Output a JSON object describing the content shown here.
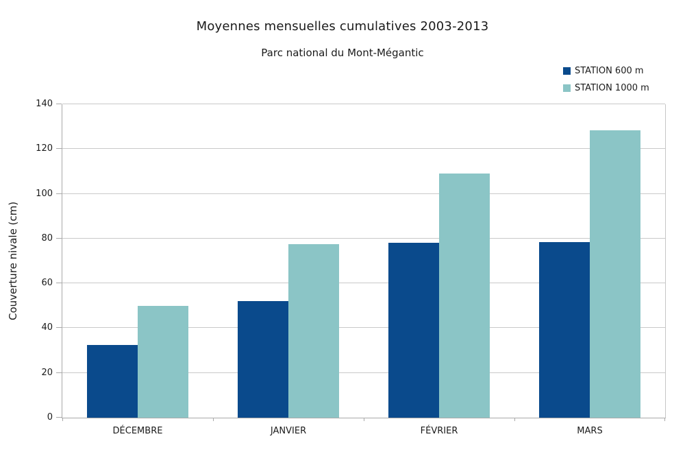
{
  "page": {
    "background_color": "#ffffff"
  },
  "colors": {
    "series_600m": "#0A4A8C",
    "series_1000m": "#8BC5C6",
    "gridline": "#C9C9C9",
    "axis_line": "#A9A9A9",
    "text": "#1A1A1A"
  },
  "chart_data": {
    "type": "bar",
    "title": "Moyennes mensuelles cumulatives 2003-2013",
    "subtitle": "Parc national du Mont-Mégantic",
    "categories": [
      "DÉCEMBRE",
      "JANVIER",
      "FÉVRIER",
      "MARS"
    ],
    "series": [
      {
        "name": "STATION 600 m",
        "color": "#0A4A8C",
        "values": [
          32.5,
          52,
          78,
          78.5
        ]
      },
      {
        "name": "STATION 1000 m",
        "color": "#8BC5C6",
        "values": [
          50,
          77.5,
          109,
          128.5
        ]
      }
    ],
    "xlabel": "",
    "ylabel": "Couverture nivale (cm)",
    "ylim": [
      0,
      140
    ],
    "ytick_step": 20,
    "ytick_labels": [
      "0",
      "20",
      "40",
      "60",
      "80",
      "100",
      "120",
      "140"
    ],
    "grid": true,
    "legend_position": "top-right"
  }
}
